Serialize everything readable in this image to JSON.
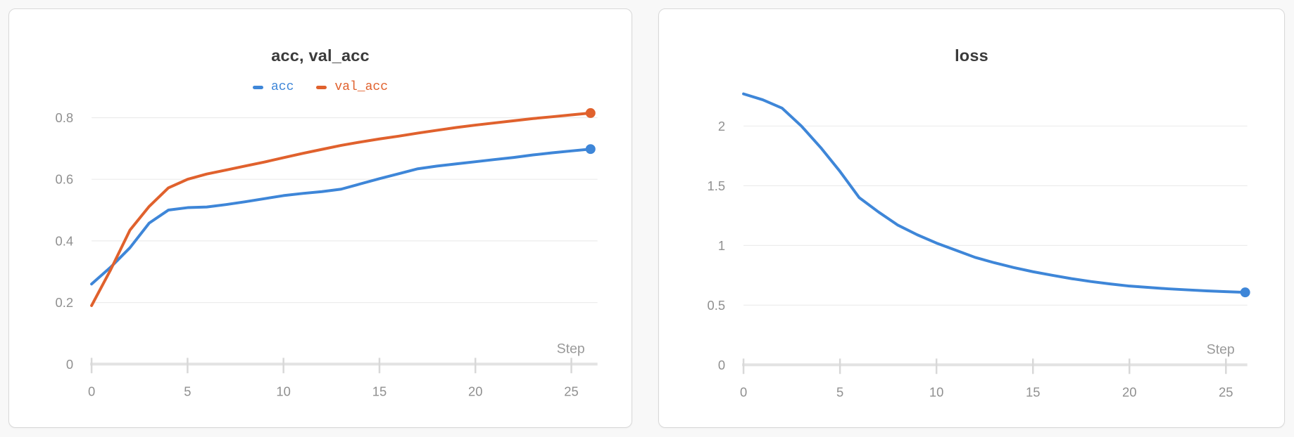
{
  "page": {
    "background": "#f8f8f8",
    "card_background": "#ffffff",
    "card_border": "#d9d9d9"
  },
  "colors": {
    "acc_series": "#3E86D8",
    "val_acc_series": "#E0612D",
    "loss_series": "#3E86D8",
    "title_text": "#3b3b3b",
    "tick_text": "#909090",
    "gridline": "#ececec",
    "axis_line": "#e3e3e3",
    "tick_mark": "#d8d8d8"
  },
  "chart_data": [
    {
      "type": "line",
      "title": "acc, val_acc",
      "xlabel": "Step",
      "ylabel": "",
      "legend": true,
      "legend_position": "top-center",
      "grid": "horizontal",
      "xlim": [
        0,
        26.4
      ],
      "ylim": [
        0,
        0.8
      ],
      "x_ticks": [
        0,
        5,
        10,
        15,
        20,
        25
      ],
      "y_ticks": [
        0,
        0.2,
        0.4,
        0.6,
        0.8
      ],
      "end_marker": true,
      "x": [
        0,
        1,
        2,
        3,
        4,
        5,
        6,
        7,
        8,
        9,
        10,
        11,
        12,
        13,
        14,
        15,
        16,
        17,
        18,
        19,
        20,
        21,
        22,
        23,
        24,
        25,
        26
      ],
      "series": [
        {
          "name": "acc",
          "color": "#3E86D8",
          "values": [
            0.26,
            0.315,
            0.378,
            0.458,
            0.5,
            0.508,
            0.51,
            0.518,
            0.527,
            0.537,
            0.547,
            0.554,
            0.56,
            0.568,
            0.585,
            0.602,
            0.618,
            0.634,
            0.643,
            0.65,
            0.657,
            0.664,
            0.671,
            0.679,
            0.686,
            0.692,
            0.698
          ]
        },
        {
          "name": "val_acc",
          "color": "#E0612D",
          "values": [
            0.19,
            0.307,
            0.435,
            0.512,
            0.572,
            0.6,
            0.617,
            0.63,
            0.643,
            0.656,
            0.67,
            0.684,
            0.697,
            0.71,
            0.721,
            0.731,
            0.74,
            0.75,
            0.759,
            0.768,
            0.776,
            0.783,
            0.79,
            0.797,
            0.803,
            0.809,
            0.815
          ]
        }
      ]
    },
    {
      "type": "line",
      "title": "loss",
      "xlabel": "Step",
      "ylabel": "",
      "legend": false,
      "grid": "horizontal",
      "xlim": [
        0,
        26.4
      ],
      "ylim": [
        0,
        2.3
      ],
      "x_ticks": [
        0,
        5,
        10,
        15,
        20,
        25
      ],
      "y_ticks": [
        0,
        0.5,
        1,
        1.5,
        2
      ],
      "end_marker": true,
      "x": [
        0,
        1,
        2,
        3,
        4,
        5,
        6,
        7,
        8,
        9,
        10,
        11,
        12,
        13,
        14,
        15,
        16,
        17,
        18,
        19,
        20,
        21,
        22,
        23,
        24,
        25,
        26
      ],
      "series": [
        {
          "name": "loss",
          "color": "#3E86D8",
          "values": [
            2.27,
            2.22,
            2.15,
            2.0,
            1.82,
            1.62,
            1.4,
            1.28,
            1.17,
            1.09,
            1.02,
            0.96,
            0.9,
            0.855,
            0.815,
            0.78,
            0.75,
            0.722,
            0.698,
            0.678,
            0.66,
            0.648,
            0.637,
            0.628,
            0.62,
            0.613,
            0.607
          ]
        }
      ]
    }
  ]
}
